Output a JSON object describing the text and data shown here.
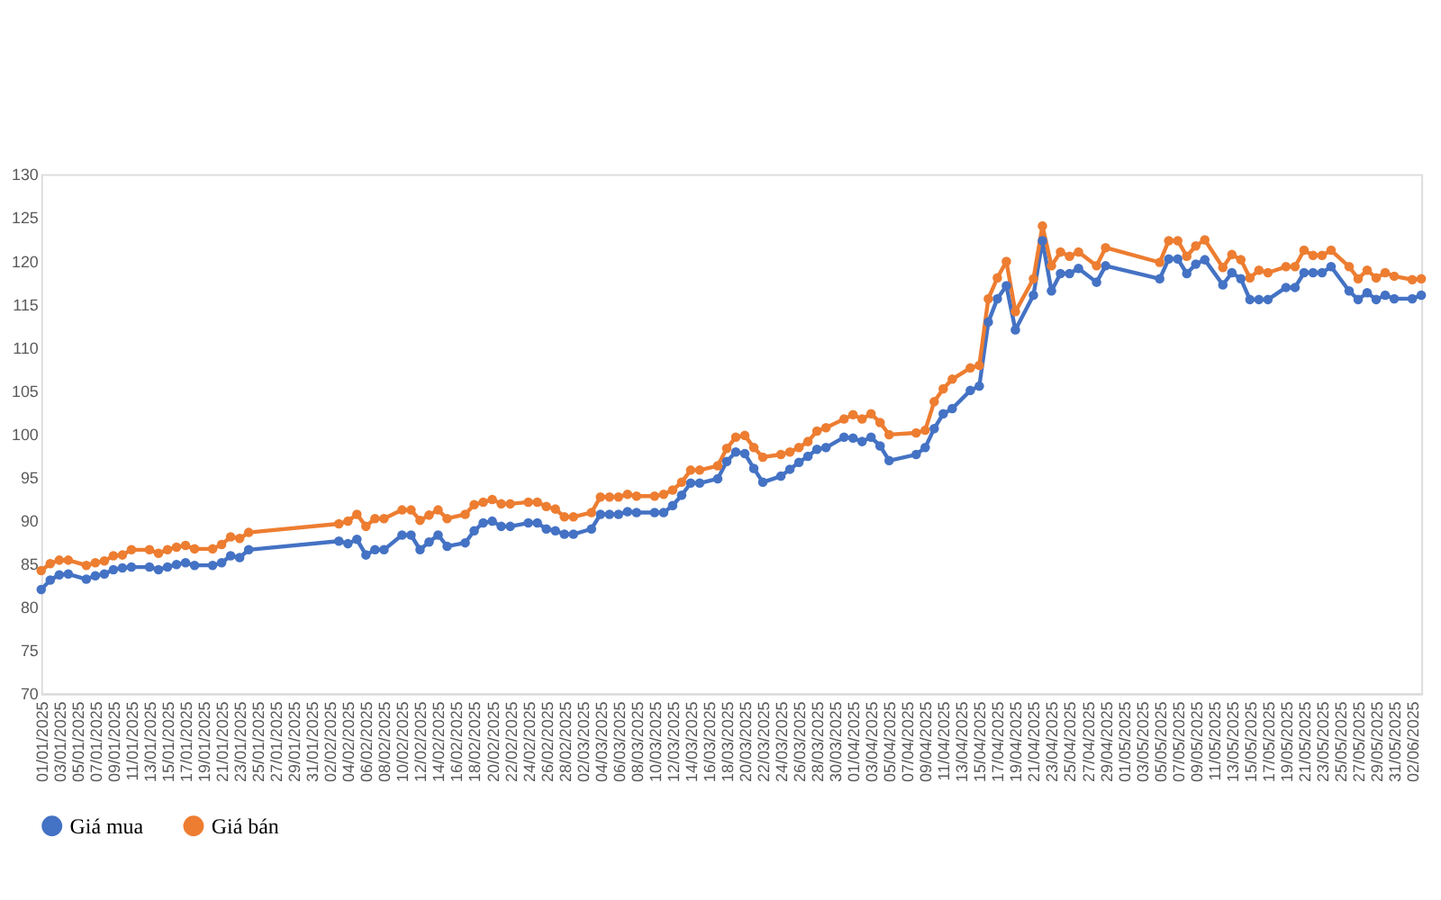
{
  "chart_data": {
    "type": "line",
    "x": [
      "2025-01-01",
      "2025-01-02",
      "2025-01-03",
      "2025-01-04",
      "2025-01-06",
      "2025-01-07",
      "2025-01-08",
      "2025-01-09",
      "2025-01-10",
      "2025-01-11",
      "2025-01-13",
      "2025-01-14",
      "2025-01-15",
      "2025-01-16",
      "2025-01-17",
      "2025-01-18",
      "2025-01-20",
      "2025-01-21",
      "2025-01-22",
      "2025-01-23",
      "2025-01-24",
      "2025-02-03",
      "2025-02-04",
      "2025-02-05",
      "2025-02-06",
      "2025-02-07",
      "2025-02-08",
      "2025-02-10",
      "2025-02-11",
      "2025-02-12",
      "2025-02-13",
      "2025-02-14",
      "2025-02-15",
      "2025-02-17",
      "2025-02-18",
      "2025-02-19",
      "2025-02-20",
      "2025-02-21",
      "2025-02-22",
      "2025-02-24",
      "2025-02-25",
      "2025-02-26",
      "2025-02-27",
      "2025-02-28",
      "2025-03-01",
      "2025-03-03",
      "2025-03-04",
      "2025-03-05",
      "2025-03-06",
      "2025-03-07",
      "2025-03-08",
      "2025-03-10",
      "2025-03-11",
      "2025-03-12",
      "2025-03-13",
      "2025-03-14",
      "2025-03-15",
      "2025-03-17",
      "2025-03-18",
      "2025-03-19",
      "2025-03-20",
      "2025-03-21",
      "2025-03-22",
      "2025-03-24",
      "2025-03-25",
      "2025-03-26",
      "2025-03-27",
      "2025-03-28",
      "2025-03-29",
      "2025-03-31",
      "2025-04-01",
      "2025-04-02",
      "2025-04-03",
      "2025-04-04",
      "2025-04-05",
      "2025-04-08",
      "2025-04-09",
      "2025-04-10",
      "2025-04-11",
      "2025-04-12",
      "2025-04-14",
      "2025-04-15",
      "2025-04-16",
      "2025-04-17",
      "2025-04-18",
      "2025-04-19",
      "2025-04-21",
      "2025-04-22",
      "2025-04-23",
      "2025-04-24",
      "2025-04-25",
      "2025-04-26",
      "2025-04-28",
      "2025-04-29",
      "2025-05-05",
      "2025-05-06",
      "2025-05-07",
      "2025-05-08",
      "2025-05-09",
      "2025-05-10",
      "2025-05-12",
      "2025-05-13",
      "2025-05-14",
      "2025-05-15",
      "2025-05-16",
      "2025-05-17",
      "2025-05-19",
      "2025-05-20",
      "2025-05-21",
      "2025-05-22",
      "2025-05-23",
      "2025-05-24",
      "2025-05-26",
      "2025-05-27",
      "2025-05-28",
      "2025-05-29",
      "2025-05-30",
      "2025-05-31",
      "2025-06-02",
      "2025-06-03"
    ],
    "series": [
      {
        "name": "Giá mua",
        "color": "#4472c4",
        "values": [
          82.0,
          83.1,
          83.7,
          83.8,
          83.2,
          83.6,
          83.8,
          84.3,
          84.5,
          84.6,
          84.6,
          84.3,
          84.6,
          84.9,
          85.1,
          84.8,
          84.8,
          85.1,
          85.9,
          85.7,
          86.6,
          87.6,
          87.3,
          87.8,
          86.0,
          86.6,
          86.6,
          88.3,
          88.3,
          86.6,
          87.5,
          88.3,
          87.0,
          87.4,
          88.8,
          89.7,
          89.9,
          89.3,
          89.3,
          89.7,
          89.7,
          89.0,
          88.8,
          88.4,
          88.4,
          89.0,
          90.7,
          90.7,
          90.7,
          91.0,
          90.9,
          90.9,
          90.9,
          91.7,
          92.9,
          94.3,
          94.3,
          94.8,
          96.8,
          97.9,
          97.7,
          96.0,
          94.4,
          95.1,
          95.9,
          96.7,
          97.4,
          98.2,
          98.4,
          99.6,
          99.5,
          99.1,
          99.6,
          98.6,
          96.9,
          97.6,
          98.4,
          100.6,
          102.3,
          102.9,
          105.0,
          105.5,
          112.9,
          115.6,
          117.1,
          112.0,
          116.0,
          122.3,
          116.5,
          118.5,
          118.5,
          119.1,
          117.5,
          119.4,
          117.9,
          120.2,
          120.2,
          118.5,
          119.6,
          120.1,
          117.2,
          118.6,
          117.9,
          115.5,
          115.5,
          115.5,
          116.9,
          116.9,
          118.6,
          118.6,
          118.6,
          119.3,
          116.5,
          115.5,
          116.3,
          115.5,
          116.0,
          115.6,
          115.6,
          116.0
        ]
      },
      {
        "name": "Giá bán",
        "color": "#ed7d31",
        "values": [
          84.2,
          85.0,
          85.4,
          85.4,
          84.8,
          85.1,
          85.3,
          85.9,
          86.0,
          86.6,
          86.6,
          86.2,
          86.6,
          86.9,
          87.1,
          86.7,
          86.7,
          87.2,
          88.1,
          87.9,
          88.6,
          89.6,
          89.9,
          90.7,
          89.3,
          90.2,
          90.2,
          91.2,
          91.2,
          90.0,
          90.6,
          91.2,
          90.2,
          90.7,
          91.8,
          92.1,
          92.4,
          91.9,
          91.9,
          92.1,
          92.1,
          91.6,
          91.3,
          90.4,
          90.4,
          90.9,
          92.7,
          92.7,
          92.7,
          93.0,
          92.8,
          92.8,
          93.0,
          93.5,
          94.4,
          95.8,
          95.8,
          96.3,
          98.3,
          99.6,
          99.8,
          98.4,
          97.3,
          97.6,
          97.9,
          98.4,
          99.1,
          100.3,
          100.7,
          101.7,
          102.2,
          101.7,
          102.3,
          101.3,
          99.9,
          100.1,
          100.4,
          103.7,
          105.2,
          106.3,
          107.6,
          107.9,
          115.6,
          118.0,
          119.9,
          114.1,
          117.9,
          124.0,
          119.4,
          121.0,
          120.5,
          121.0,
          119.4,
          121.5,
          119.8,
          122.3,
          122.3,
          120.5,
          121.7,
          122.4,
          119.2,
          120.7,
          120.1,
          118.0,
          118.9,
          118.6,
          119.3,
          119.3,
          121.2,
          120.6,
          120.6,
          121.2,
          119.3,
          117.9,
          118.9,
          118.0,
          118.6,
          118.2,
          117.8,
          117.9
        ]
      }
    ],
    "xlim": [
      "2025-01-01",
      "2025-06-03"
    ],
    "xticks": [
      {
        "value": "2025-01-01",
        "label": "01/01/2025"
      },
      {
        "value": "2025-01-03",
        "label": "03/01/2025"
      },
      {
        "value": "2025-01-05",
        "label": "05/01/2025"
      },
      {
        "value": "2025-01-07",
        "label": "07/01/2025"
      },
      {
        "value": "2025-01-09",
        "label": "09/01/2025"
      },
      {
        "value": "2025-01-11",
        "label": "11/01/2025"
      },
      {
        "value": "2025-01-13",
        "label": "13/01/2025"
      },
      {
        "value": "2025-01-15",
        "label": "15/01/2025"
      },
      {
        "value": "2025-01-17",
        "label": "17/01/2025"
      },
      {
        "value": "2025-01-19",
        "label": "19/01/2025"
      },
      {
        "value": "2025-01-21",
        "label": "21/01/2025"
      },
      {
        "value": "2025-01-23",
        "label": "23/01/2025"
      },
      {
        "value": "2025-01-25",
        "label": "25/01/2025"
      },
      {
        "value": "2025-01-27",
        "label": "27/01/2025"
      },
      {
        "value": "2025-01-29",
        "label": "29/01/2025"
      },
      {
        "value": "2025-01-31",
        "label": "31/01/2025"
      },
      {
        "value": "2025-02-02",
        "label": "02/02/2025"
      },
      {
        "value": "2025-02-04",
        "label": "04/02/2025"
      },
      {
        "value": "2025-02-06",
        "label": "06/02/2025"
      },
      {
        "value": "2025-02-08",
        "label": "08/02/2025"
      },
      {
        "value": "2025-02-10",
        "label": "10/02/2025"
      },
      {
        "value": "2025-02-12",
        "label": "12/02/2025"
      },
      {
        "value": "2025-02-14",
        "label": "14/02/2025"
      },
      {
        "value": "2025-02-16",
        "label": "16/02/2025"
      },
      {
        "value": "2025-02-18",
        "label": "18/02/2025"
      },
      {
        "value": "2025-02-20",
        "label": "20/02/2025"
      },
      {
        "value": "2025-02-22",
        "label": "22/02/2025"
      },
      {
        "value": "2025-02-24",
        "label": "24/02/2025"
      },
      {
        "value": "2025-02-26",
        "label": "26/02/2025"
      },
      {
        "value": "2025-02-28",
        "label": "28/02/2025"
      },
      {
        "value": "2025-03-02",
        "label": "02/03/2025"
      },
      {
        "value": "2025-03-04",
        "label": "04/03/2025"
      },
      {
        "value": "2025-03-06",
        "label": "06/03/2025"
      },
      {
        "value": "2025-03-08",
        "label": "08/03/2025"
      },
      {
        "value": "2025-03-10",
        "label": "10/03/2025"
      },
      {
        "value": "2025-03-12",
        "label": "12/03/2025"
      },
      {
        "value": "2025-03-14",
        "label": "14/03/2025"
      },
      {
        "value": "2025-03-16",
        "label": "16/03/2025"
      },
      {
        "value": "2025-03-18",
        "label": "18/03/2025"
      },
      {
        "value": "2025-03-20",
        "label": "20/03/2025"
      },
      {
        "value": "2025-03-22",
        "label": "22/03/2025"
      },
      {
        "value": "2025-03-24",
        "label": "24/03/2025"
      },
      {
        "value": "2025-03-26",
        "label": "26/03/2025"
      },
      {
        "value": "2025-03-28",
        "label": "28/03/2025"
      },
      {
        "value": "2025-03-30",
        "label": "30/03/2025"
      },
      {
        "value": "2025-04-01",
        "label": "01/04/2025"
      },
      {
        "value": "2025-04-03",
        "label": "03/04/2025"
      },
      {
        "value": "2025-04-05",
        "label": "05/04/2025"
      },
      {
        "value": "2025-04-07",
        "label": "07/04/2025"
      },
      {
        "value": "2025-04-09",
        "label": "09/04/2025"
      },
      {
        "value": "2025-04-11",
        "label": "11/04/2025"
      },
      {
        "value": "2025-04-13",
        "label": "13/04/2025"
      },
      {
        "value": "2025-04-15",
        "label": "15/04/2025"
      },
      {
        "value": "2025-04-17",
        "label": "17/04/2025"
      },
      {
        "value": "2025-04-19",
        "label": "19/04/2025"
      },
      {
        "value": "2025-04-21",
        "label": "21/04/2025"
      },
      {
        "value": "2025-04-23",
        "label": "23/04/2025"
      },
      {
        "value": "2025-04-25",
        "label": "25/04/2025"
      },
      {
        "value": "2025-04-27",
        "label": "27/04/2025"
      },
      {
        "value": "2025-04-29",
        "label": "29/04/2025"
      },
      {
        "value": "2025-05-01",
        "label": "01/05/2025"
      },
      {
        "value": "2025-05-03",
        "label": "03/05/2025"
      },
      {
        "value": "2025-05-05",
        "label": "05/05/2025"
      },
      {
        "value": "2025-05-07",
        "label": "07/05/2025"
      },
      {
        "value": "2025-05-09",
        "label": "09/05/2025"
      },
      {
        "value": "2025-05-11",
        "label": "11/05/2025"
      },
      {
        "value": "2025-05-13",
        "label": "13/05/2025"
      },
      {
        "value": "2025-05-15",
        "label": "15/05/2025"
      },
      {
        "value": "2025-05-17",
        "label": "17/05/2025"
      },
      {
        "value": "2025-05-19",
        "label": "19/05/2025"
      },
      {
        "value": "2025-05-21",
        "label": "21/05/2025"
      },
      {
        "value": "2025-05-23",
        "label": "23/05/2025"
      },
      {
        "value": "2025-05-25",
        "label": "25/05/2025"
      },
      {
        "value": "2025-05-27",
        "label": "27/05/2025"
      },
      {
        "value": "2025-05-29",
        "label": "29/05/2025"
      },
      {
        "value": "2025-05-31",
        "label": "31/05/2025"
      },
      {
        "value": "2025-06-02",
        "label": "02/06/2025"
      }
    ],
    "ylim": [
      70,
      130
    ],
    "yticks": [
      70,
      75,
      80,
      85,
      90,
      95,
      100,
      105,
      110,
      115,
      120,
      125,
      130
    ],
    "grid": false,
    "legend": "bottom",
    "marker": "circle",
    "line_style": "solid"
  }
}
